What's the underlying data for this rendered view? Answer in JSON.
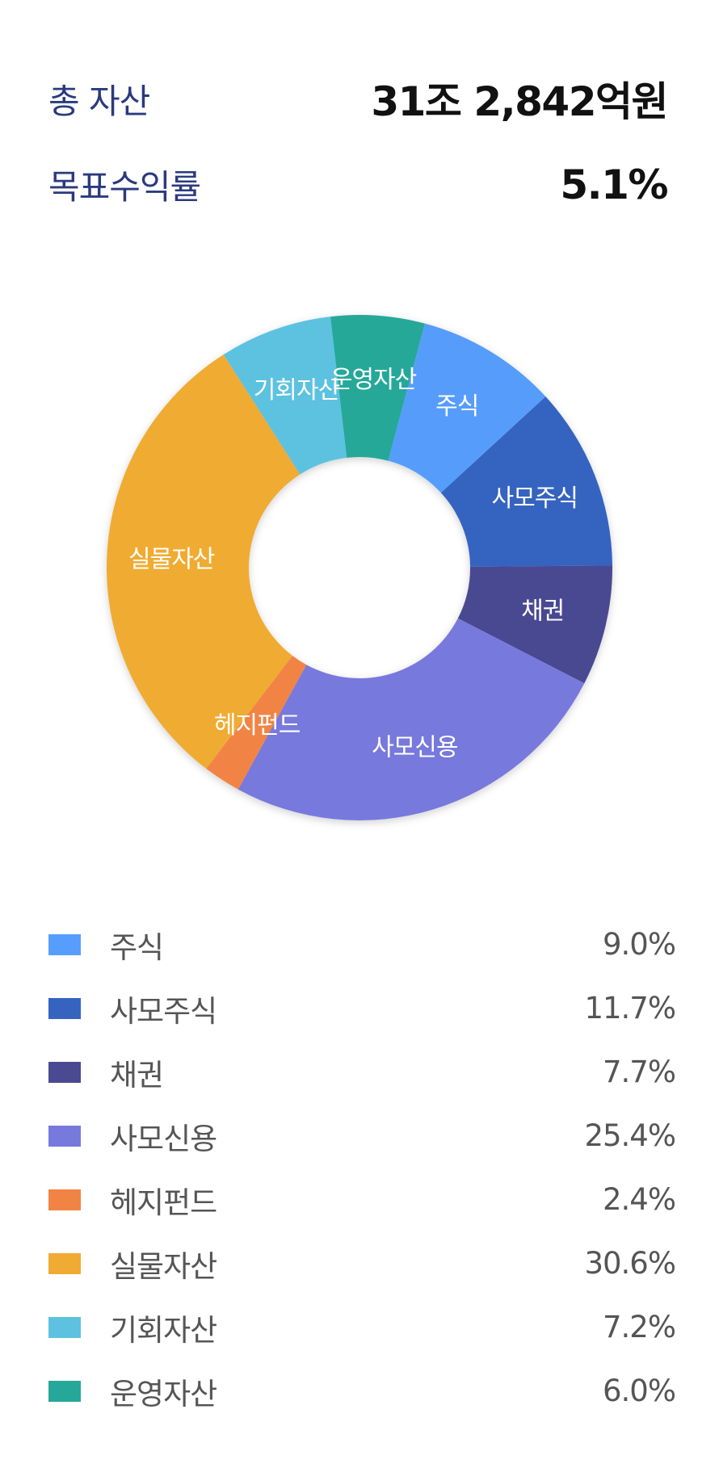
{
  "summary": {
    "total_label": "총 자산",
    "total_value": "31조 2,842억원",
    "target_label": "목표수익률",
    "target_value": "5.1%"
  },
  "chart_data": {
    "type": "pie",
    "donut": true,
    "title": "",
    "legend_position": "bottom",
    "categories": [
      "주식",
      "사모주식",
      "채권",
      "사모신용",
      "헤지펀드",
      "실물자산",
      "기회자산",
      "운영자산"
    ],
    "values": [
      9.0,
      11.7,
      7.7,
      25.4,
      2.4,
      30.6,
      7.2,
      6.0
    ],
    "value_labels": [
      "9.0%",
      "11.7%",
      "7.7%",
      "25.4%",
      "2.4%",
      "30.6%",
      "7.2%",
      "6.0%"
    ],
    "colors": [
      "#579dfb",
      "#3563c0",
      "#4a4a92",
      "#7879dc",
      "#f18444",
      "#f0ab33",
      "#5cc2e0",
      "#25a899"
    ],
    "unit": "%"
  }
}
